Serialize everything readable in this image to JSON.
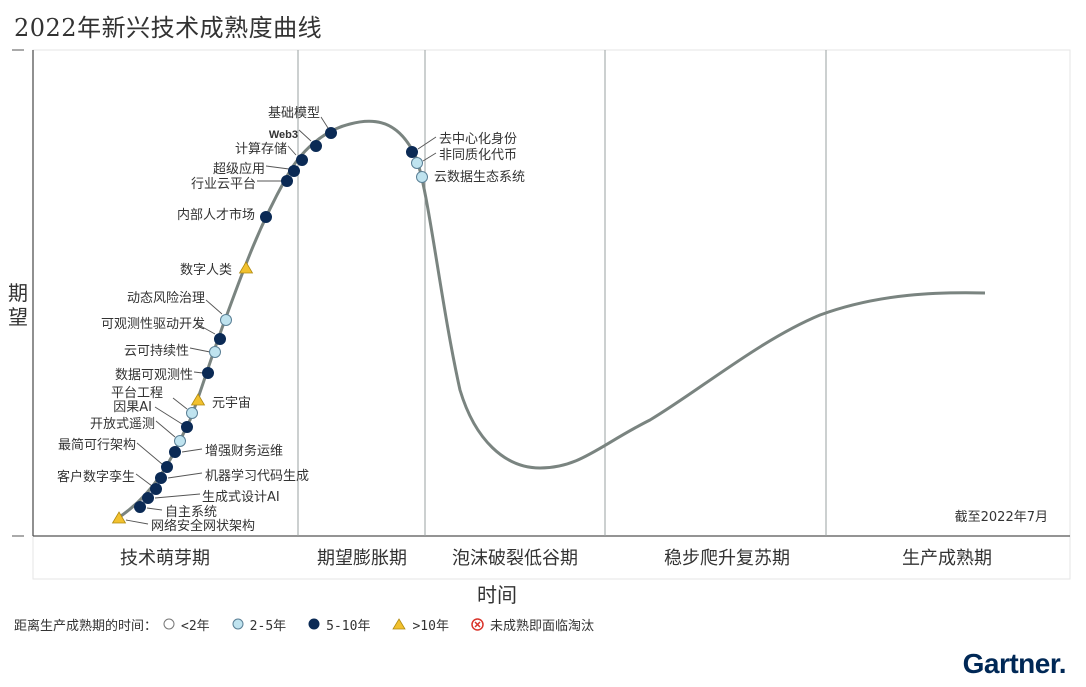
{
  "title": "2022年新兴技术成熟度曲线",
  "axes": {
    "y_label": "期望",
    "x_label": "时间"
  },
  "phases": [
    "技术萌芽期",
    "期望膨胀期",
    "泡沫破裂低谷期",
    "稳步爬升复苏期",
    "生产成熟期"
  ],
  "as_of": "截至2022年7月",
  "colors": {
    "curve": "#7a8480",
    "lt2": "#ffffff",
    "y2to5": "#bfe3ef",
    "y5to10": "#0b2a55",
    "gt10": "#f2c12e",
    "obsolete": "#d9342b"
  },
  "legend": {
    "prefix": "距离生产成熟期的时间：",
    "items": [
      {
        "key": "lt2",
        "label": "<2年",
        "marker": "circle-white"
      },
      {
        "key": "y2to5",
        "label": "2-5年",
        "marker": "circle-light-blue"
      },
      {
        "key": "y5to10",
        "label": "5-10年",
        "marker": "circle-dark-navy"
      },
      {
        "key": "gt10",
        "label": ">10年",
        "marker": "triangle-yellow"
      },
      {
        "key": "obsolete",
        "label": "未成熟即面临淘汰",
        "marker": "x-circle-red"
      }
    ]
  },
  "technologies": [
    {
      "name": "基础模型",
      "cat": "y5to10"
    },
    {
      "name": "Web3",
      "cat": "y5to10"
    },
    {
      "name": "计算存储",
      "cat": "y5to10"
    },
    {
      "name": "超级应用",
      "cat": "y5to10"
    },
    {
      "name": "行业云平台",
      "cat": "y5to10"
    },
    {
      "name": "内部人才市场",
      "cat": "y5to10"
    },
    {
      "name": "数字人类",
      "cat": "gt10"
    },
    {
      "name": "动态风险治理",
      "cat": "y2to5"
    },
    {
      "name": "可观测性驱动开发",
      "cat": "y5to10"
    },
    {
      "name": "云可持续性",
      "cat": "y2to5"
    },
    {
      "name": "数据可观测性",
      "cat": "y5to10"
    },
    {
      "name": "元宇宙",
      "cat": "gt10"
    },
    {
      "name": "平台工程",
      "cat": "y2to5"
    },
    {
      "name": "因果AI",
      "cat": "y5to10"
    },
    {
      "name": "开放式遥测",
      "cat": "y2to5"
    },
    {
      "name": "增强财务运维",
      "cat": "y5to10"
    },
    {
      "name": "最简可行架构",
      "cat": "y5to10"
    },
    {
      "name": "机器学习代码生成",
      "cat": "y5to10"
    },
    {
      "name": "客户数字孪生",
      "cat": "y5to10"
    },
    {
      "name": "生成式设计AI",
      "cat": "y5to10"
    },
    {
      "name": "自主系统",
      "cat": "y5to10"
    },
    {
      "name": "网络安全网状架构",
      "cat": "gt10"
    },
    {
      "name": "去中心化身份",
      "cat": "y5to10"
    },
    {
      "name": "非同质化代币",
      "cat": "y2to5"
    },
    {
      "name": "云数据生态系统",
      "cat": "y2to5"
    }
  ],
  "logo": "Gartner."
}
